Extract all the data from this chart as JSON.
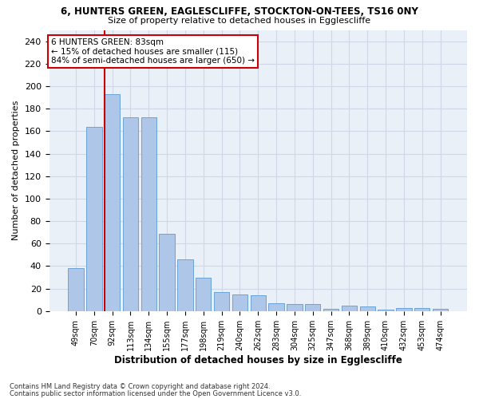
{
  "title1": "6, HUNTERS GREEN, EAGLESCLIFFE, STOCKTON-ON-TEES, TS16 0NY",
  "title2": "Size of property relative to detached houses in Egglescliffe",
  "xlabel": "Distribution of detached houses by size in Egglescliffe",
  "ylabel": "Number of detached properties",
  "categories": [
    "49sqm",
    "70sqm",
    "92sqm",
    "113sqm",
    "134sqm",
    "155sqm",
    "177sqm",
    "198sqm",
    "219sqm",
    "240sqm",
    "262sqm",
    "283sqm",
    "304sqm",
    "325sqm",
    "347sqm",
    "368sqm",
    "389sqm",
    "410sqm",
    "432sqm",
    "453sqm",
    "474sqm"
  ],
  "values": [
    38,
    164,
    193,
    172,
    172,
    69,
    46,
    30,
    17,
    15,
    14,
    7,
    6,
    6,
    2,
    5,
    4,
    1,
    3,
    3,
    2
  ],
  "bar_color": "#aec6e8",
  "bar_edge_color": "#5b9bd5",
  "ref_line_color": "#cc0000",
  "ref_line_index": 1.57,
  "annotation_text": "6 HUNTERS GREEN: 83sqm\n← 15% of detached houses are smaller (115)\n84% of semi-detached houses are larger (650) →",
  "annotation_box_color": "#ffffff",
  "annotation_box_edge": "#cc0000",
  "ylim": [
    0,
    250
  ],
  "yticks": [
    0,
    20,
    40,
    60,
    80,
    100,
    120,
    140,
    160,
    180,
    200,
    220,
    240
  ],
  "footer1": "Contains HM Land Registry data © Crown copyright and database right 2024.",
  "footer2": "Contains public sector information licensed under the Open Government Licence v3.0.",
  "grid_color": "#d0d8e8",
  "bg_color": "#eaf0f8"
}
